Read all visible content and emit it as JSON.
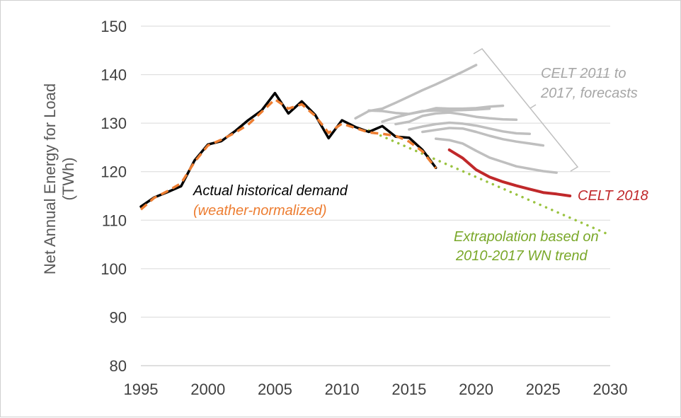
{
  "chart_data": {
    "type": "line",
    "xlabel": "",
    "ylabel": "Net Annual Energy for Load",
    "ylabel_unit": "(TWh)",
    "xlim": [
      1995,
      2030
    ],
    "ylim": [
      80,
      150
    ],
    "xticks": [
      "1995",
      "2000",
      "2005",
      "2010",
      "2015",
      "2020",
      "2025",
      "2030"
    ],
    "yticks": [
      "80",
      "90",
      "100",
      "110",
      "120",
      "130",
      "140",
      "150"
    ],
    "grid": "horizontal",
    "colors": {
      "actual": "#000000",
      "weather_normalized": "#ed7d31",
      "celt_2011_2017": "#bfbfbf",
      "celt_2018": "#c0282a",
      "extrapolation": "#9ac340",
      "bracket": "#bfbfbf",
      "gridline": "#d9d9d9"
    },
    "annotations": {
      "actual_line1": "Actual historical demand",
      "actual_line2": "(weather-normalized)",
      "celt_range_line1": "CELT 2011 to",
      "celt_range_line2": "2017, forecasts",
      "celt_2018": "CELT 2018",
      "extrap_line1": "Extrapolation based on",
      "extrap_line2": "2010-2017 WN trend"
    },
    "series": [
      {
        "key": "actual",
        "style": "solid",
        "x": [
          1995,
          1996,
          1997,
          1998,
          1999,
          2000,
          2001,
          2002,
          2003,
          2004,
          2005,
          2006,
          2007,
          2008,
          2009,
          2010,
          2011,
          2012,
          2013,
          2014,
          2015,
          2016,
          2017
        ],
        "y": [
          112.8,
          114.7,
          115.8,
          117.0,
          122.3,
          125.6,
          126.3,
          128.3,
          130.6,
          132.6,
          136.2,
          132.0,
          134.5,
          131.7,
          126.9,
          130.6,
          129.2,
          128.2,
          129.4,
          127.2,
          127.0,
          124.5,
          120.8
        ]
      },
      {
        "key": "weather_normalized",
        "style": "dashed",
        "x": [
          1995,
          1996,
          1997,
          1998,
          1999,
          2000,
          2001,
          2002,
          2003,
          2004,
          2005,
          2006,
          2007,
          2008,
          2009,
          2010,
          2011,
          2012,
          2013,
          2014,
          2015,
          2016,
          2017
        ],
        "y": [
          112.2,
          114.6,
          116.0,
          117.6,
          122.0,
          125.4,
          126.6,
          128.0,
          129.7,
          132.3,
          134.9,
          133.0,
          133.9,
          131.5,
          128.0,
          129.9,
          129.0,
          128.1,
          127.8,
          127.4,
          126.2,
          124.2,
          120.7
        ]
      },
      {
        "key": "celt_2011_2017",
        "style": "solid",
        "x": [
          2011,
          2012,
          2013,
          2014,
          2015,
          2016,
          2017,
          2018,
          2019,
          2020
        ],
        "y": [
          131.0,
          132.5,
          133.0,
          134.2,
          135.5,
          136.8,
          138.0,
          139.3,
          140.6,
          142.0
        ]
      },
      {
        "key": "celt_2011_2017",
        "style": "solid",
        "x": [
          2012,
          2013,
          2014,
          2015,
          2016,
          2017,
          2018,
          2019,
          2020,
          2021,
          2022
        ],
        "y": [
          132.6,
          132.5,
          132.1,
          131.9,
          132.4,
          133.1,
          133.0,
          133.0,
          133.1,
          133.4,
          133.6
        ]
      },
      {
        "key": "celt_2011_2017",
        "style": "solid",
        "x": [
          2013,
          2014,
          2015,
          2016,
          2017,
          2018,
          2019,
          2020,
          2021
        ],
        "y": [
          130.3,
          131.2,
          131.9,
          132.5,
          132.6,
          132.6,
          132.7,
          132.8,
          133.0
        ]
      },
      {
        "key": "celt_2011_2017",
        "style": "solid",
        "x": [
          2014,
          2015,
          2016,
          2017,
          2018,
          2019,
          2020,
          2021,
          2022,
          2023
        ],
        "y": [
          129.8,
          130.3,
          131.5,
          132.0,
          132.2,
          131.8,
          131.3,
          131.0,
          130.8,
          130.7
        ]
      },
      {
        "key": "celt_2011_2017",
        "style": "solid",
        "x": [
          2015,
          2016,
          2017,
          2018,
          2019,
          2020,
          2021,
          2022,
          2023,
          2024
        ],
        "y": [
          128.7,
          129.3,
          129.8,
          130.1,
          129.9,
          129.5,
          128.9,
          128.3,
          127.9,
          127.8
        ]
      },
      {
        "key": "celt_2011_2017",
        "style": "solid",
        "x": [
          2016,
          2017,
          2018,
          2019,
          2020,
          2021,
          2022,
          2023,
          2024,
          2025
        ],
        "y": [
          128.2,
          128.6,
          129.0,
          128.9,
          128.2,
          127.4,
          126.7,
          126.2,
          125.8,
          125.4
        ]
      },
      {
        "key": "celt_2011_2017",
        "style": "solid",
        "x": [
          2017,
          2018,
          2019,
          2020,
          2021,
          2022,
          2023,
          2024,
          2025,
          2026
        ],
        "y": [
          126.8,
          126.5,
          125.8,
          124.3,
          122.9,
          122.0,
          121.1,
          120.6,
          120.1,
          119.8
        ]
      },
      {
        "key": "celt_2018",
        "style": "solid",
        "x": [
          2018,
          2019,
          2020,
          2021,
          2022,
          2023,
          2024,
          2025,
          2026,
          2027
        ],
        "y": [
          124.5,
          122.8,
          120.4,
          118.9,
          117.9,
          117.1,
          116.4,
          115.7,
          115.4,
          115.0
        ]
      },
      {
        "key": "extrapolation",
        "style": "dotted",
        "x": [
          2012,
          2017,
          2030
        ],
        "y": [
          128.5,
          122.5,
          106.9
        ]
      }
    ]
  }
}
